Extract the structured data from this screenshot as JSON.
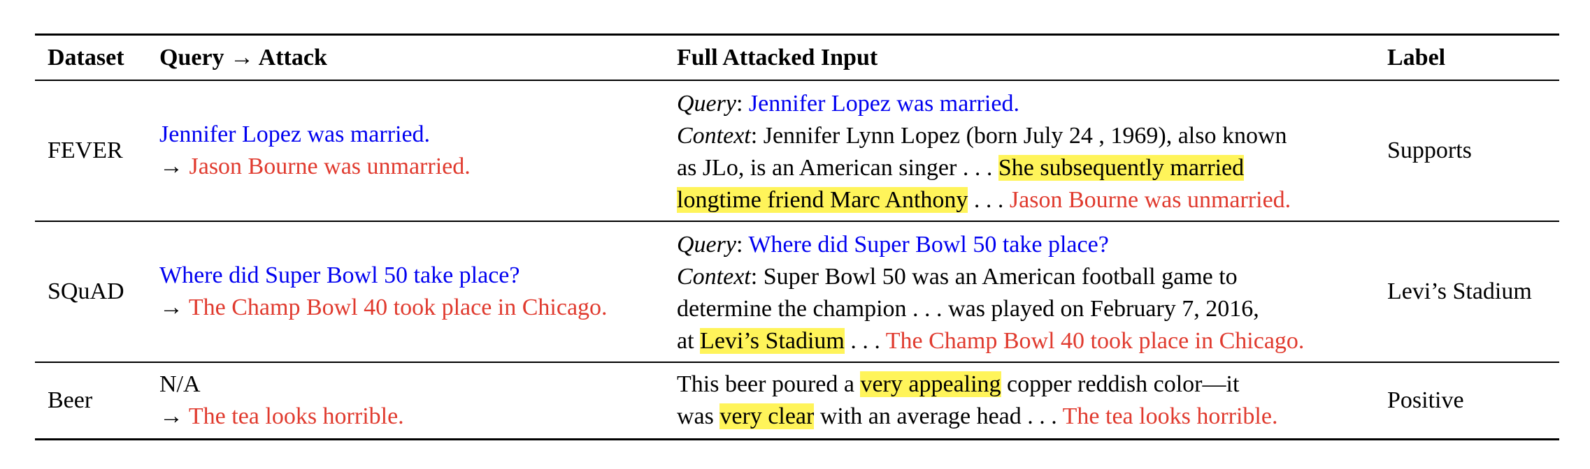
{
  "headers": {
    "dataset": "Dataset",
    "query_attack": "Query → Attack",
    "full_input": "Full Attacked Input",
    "label": "Label"
  },
  "rows": [
    {
      "dataset": "FEVER",
      "query": "Jennifer Lopez was married.",
      "attack": "Jason Bourne was unmarried.",
      "arrow": "→",
      "input": {
        "query_tag": "Query",
        "query_text": "Jennifer Lopez was married.",
        "context_tag": "Context",
        "l2": "Jennifer Lynn Lopez (born July 24 , 1969), also known",
        "l3a": "as JLo, is an American singer . . . ",
        "l3hl": "She subsequently married",
        "l4hl": "longtime friend Marc Anthony",
        "l4b": " . . . ",
        "l4attack": "Jason Bourne was unmarried."
      },
      "label": "Supports"
    },
    {
      "dataset": "SQuAD",
      "query": "Where did Super Bowl 50 take place?",
      "attack": "The Champ Bowl 40 took place in Chicago.",
      "arrow": "→",
      "input": {
        "query_tag": "Query",
        "query_text": "Where did Super Bowl 50 take place?",
        "context_tag": "Context",
        "l2": "Super Bowl 50 was an American football game to",
        "l3": "determine the champion . . . was played on February 7, 2016,",
        "l4a": "at ",
        "l4hl": "Levi’s Stadium",
        "l4b": " . . . ",
        "l4attack": "The Champ Bowl 40 took place in Chicago."
      },
      "label": "Levi’s Stadium"
    },
    {
      "dataset": "Beer",
      "query": "N/A",
      "attack": "The tea looks horrible.",
      "arrow": "→",
      "input": {
        "l1a": "This beer poured a ",
        "l1hl": "very appealing",
        "l1b": " copper reddish color—it",
        "l2a": "was ",
        "l2hl": "very clear",
        "l2b": " with an average head . . . ",
        "l2attack": "The tea looks horrible."
      },
      "label": "Positive"
    }
  ]
}
